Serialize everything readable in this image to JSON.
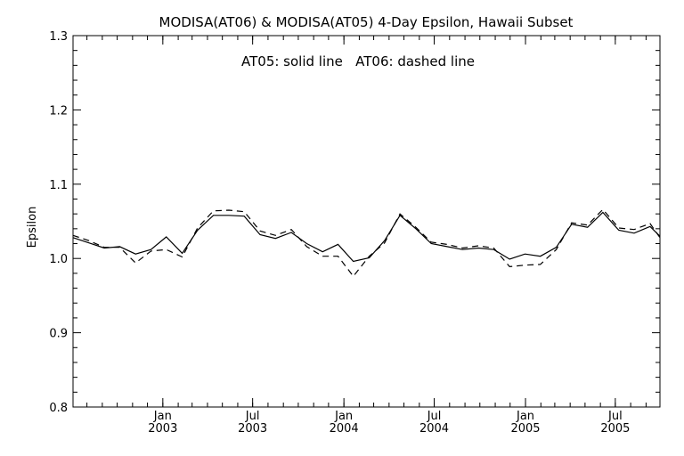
{
  "chart_data": {
    "type": "line",
    "title": "MODISA(AT06) & MODISA(AT05) 4-Day Epsilon, Hawaii Subset",
    "annotation": "AT05: solid line   AT06: dashed line",
    "xlabel": "",
    "ylabel": "Epsilon",
    "ylim": [
      0.8,
      1.3
    ],
    "yticks": [
      "0.8",
      "0.9",
      "1.0",
      "1.1",
      "1.2",
      "1.3"
    ],
    "xlim": [
      "2002-07-04",
      "2005-09-29"
    ],
    "xticks": [
      {
        "date": "2003-01-01",
        "line1": "Jan",
        "line2": "2003"
      },
      {
        "date": "2003-07-01",
        "line1": "Jul",
        "line2": "2003"
      },
      {
        "date": "2004-01-01",
        "line1": "Jan",
        "line2": "2004"
      },
      {
        "date": "2004-07-01",
        "line1": "Jul",
        "line2": "2004"
      },
      {
        "date": "2005-01-01",
        "line1": "Jan",
        "line2": "2005"
      },
      {
        "date": "2005-07-01",
        "line1": "Jul",
        "line2": "2005"
      }
    ],
    "grid": false,
    "x": [
      "2002-07-04",
      "2002-08-05",
      "2002-09-05",
      "2002-10-06",
      "2002-11-07",
      "2002-12-08",
      "2003-01-08",
      "2003-02-09",
      "2003-03-12",
      "2003-04-13",
      "2003-05-14",
      "2003-06-14",
      "2003-07-16",
      "2003-08-16",
      "2003-09-17",
      "2003-10-18",
      "2003-11-19",
      "2003-12-20",
      "2004-01-20",
      "2004-02-21",
      "2004-03-23",
      "2004-04-23",
      "2004-05-25",
      "2004-06-25",
      "2004-07-27",
      "2004-08-27",
      "2004-09-28",
      "2004-10-29",
      "2004-11-30",
      "2004-12-31",
      "2005-01-31",
      "2005-03-04",
      "2005-04-04",
      "2005-05-06",
      "2005-06-06",
      "2005-07-08",
      "2005-08-08",
      "2005-09-09",
      "2005-09-29"
    ],
    "series": [
      {
        "name": "AT05",
        "line_style": "solid",
        "values": [
          1.028,
          1.021,
          1.014,
          1.016,
          1.006,
          1.012,
          1.029,
          1.007,
          1.038,
          1.058,
          1.058,
          1.057,
          1.032,
          1.027,
          1.035,
          1.02,
          1.009,
          1.019,
          0.996,
          1.001,
          1.024,
          1.058,
          1.04,
          1.02,
          1.016,
          1.012,
          1.014,
          1.012,
          0.999,
          1.006,
          1.003,
          1.015,
          1.046,
          1.042,
          1.062,
          1.038,
          1.034,
          1.043,
          1.03
        ]
      },
      {
        "name": "AT06",
        "line_style": "dashed",
        "values": [
          1.031,
          1.024,
          1.015,
          1.015,
          0.994,
          1.01,
          1.012,
          1.002,
          1.041,
          1.064,
          1.065,
          1.063,
          1.037,
          1.031,
          1.039,
          1.016,
          1.003,
          1.003,
          0.976,
          1.003,
          1.021,
          1.06,
          1.042,
          1.022,
          1.019,
          1.014,
          1.017,
          1.014,
          0.989,
          0.991,
          0.992,
          1.012,
          1.048,
          1.045,
          1.066,
          1.041,
          1.039,
          1.047,
          1.028
        ]
      }
    ]
  }
}
